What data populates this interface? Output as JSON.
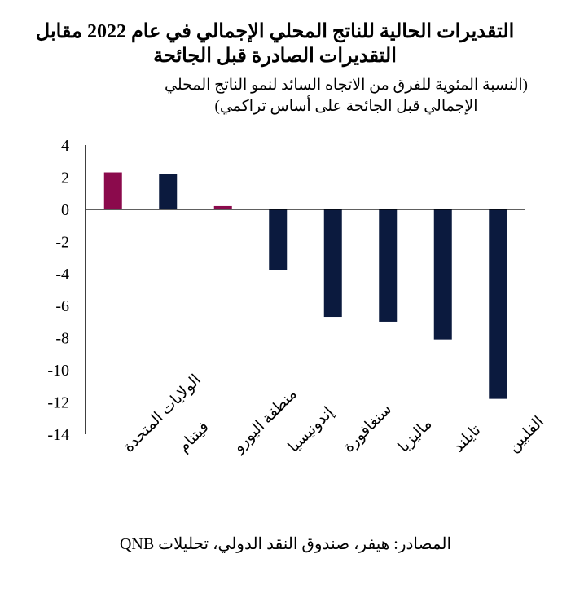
{
  "chart_data": {
    "type": "bar",
    "title": "التقديرات الحالية للناتج المحلي الإجمالي في عام 2022 مقابل التقديرات الصادرة قبل الجائحة",
    "subtitle": "(النسبة المئوية للفرق من الاتجاه السائد لنمو الناتج المحلي الإجمالي قبل الجائحة على أساس تراكمي)",
    "categories": [
      "الولايات المتحدة",
      "فيتنام",
      "منطقة اليورو",
      "إندونيسيا",
      "سنغافورة",
      "ماليزيا",
      "تايلند",
      "الفلبين"
    ],
    "values": [
      2.3,
      2.2,
      0.2,
      -3.8,
      -6.7,
      -7.0,
      -8.1,
      -11.8
    ],
    "colors": [
      "#8B0A4C",
      "#0B1A3E",
      "#8B0A4C",
      "#0B1A3E",
      "#0B1A3E",
      "#0B1A3E",
      "#0B1A3E",
      "#0B1A3E"
    ],
    "ylim": [
      -14,
      4
    ],
    "yticks": [
      "4",
      "2",
      "0",
      "-2",
      "-4",
      "-6",
      "-8",
      "-10",
      "-12",
      "-14"
    ],
    "grid": false,
    "legend": "none",
    "source": "المصادر: هيفر، صندوق النقد الدولي، تحليلات QNB"
  }
}
